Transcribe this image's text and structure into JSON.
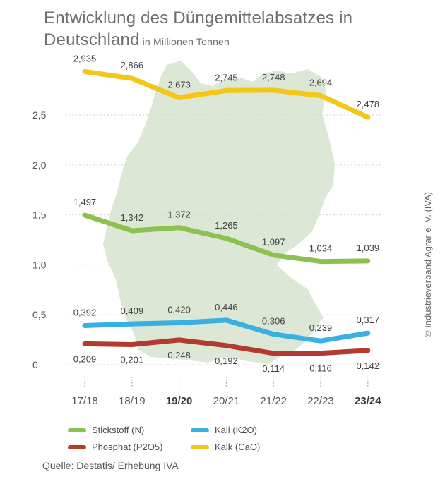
{
  "title": "Entwicklung des Düngemittelabsatzes in Deutschland",
  "unit_label": "in Millionen Tonnen",
  "copyright": "© Industrieverband Agrar e. V. (IVA)",
  "source": "Quelle: Destatis/ Erhebung IVA",
  "chart_data": {
    "type": "line",
    "categories": [
      "17/18",
      "18/19",
      "19/20",
      "20/21",
      "21/22",
      "22/23",
      "23/24"
    ],
    "bold_categories": [
      "19/20",
      "23/24"
    ],
    "y_ticks": [
      "0",
      "0,5",
      "1,0",
      "1,5",
      "2,0",
      "2,5"
    ],
    "ylim": [
      0,
      3.0
    ],
    "grid": true,
    "background": "map of Germany",
    "series": [
      {
        "name": "Kalk (CaO)",
        "color": "#f5c518",
        "values": [
          2.935,
          2.866,
          2.673,
          2.745,
          2.748,
          2.694,
          2.478
        ],
        "labels": [
          "2,935",
          "2,866",
          "2,673",
          "2,745",
          "2,748",
          "2,694",
          "2,478"
        ]
      },
      {
        "name": "Stickstoff (N)",
        "color": "#8dc14f",
        "values": [
          1.497,
          1.342,
          1.372,
          1.265,
          1.097,
          1.034,
          1.039
        ],
        "labels": [
          "1,497",
          "1,342",
          "1,372",
          "1,265",
          "1,097",
          "1,034",
          "1,039"
        ]
      },
      {
        "name": "Kali (K2O)",
        "color": "#3ab0e2",
        "values": [
          0.392,
          0.409,
          0.42,
          0.446,
          0.306,
          0.239,
          0.317
        ],
        "labels": [
          "0,392",
          "0,409",
          "0,420",
          "0,446",
          "0,306",
          "0,239",
          "0,317"
        ]
      },
      {
        "name": "Phosphat (P2O5)",
        "color": "#b33a2e",
        "values": [
          0.209,
          0.201,
          0.248,
          0.192,
          0.114,
          0.116,
          0.142
        ],
        "labels": [
          "0,209",
          "0,201",
          "0,248",
          "0,192",
          "0,114",
          "0,116",
          "0,142"
        ]
      }
    ]
  },
  "legend": {
    "stickstoff": "Stickstoff (N)",
    "kali": "Kali (K2O)",
    "phosphat": "Phosphat (P2O5)",
    "kalk": "Kalk (CaO)"
  }
}
